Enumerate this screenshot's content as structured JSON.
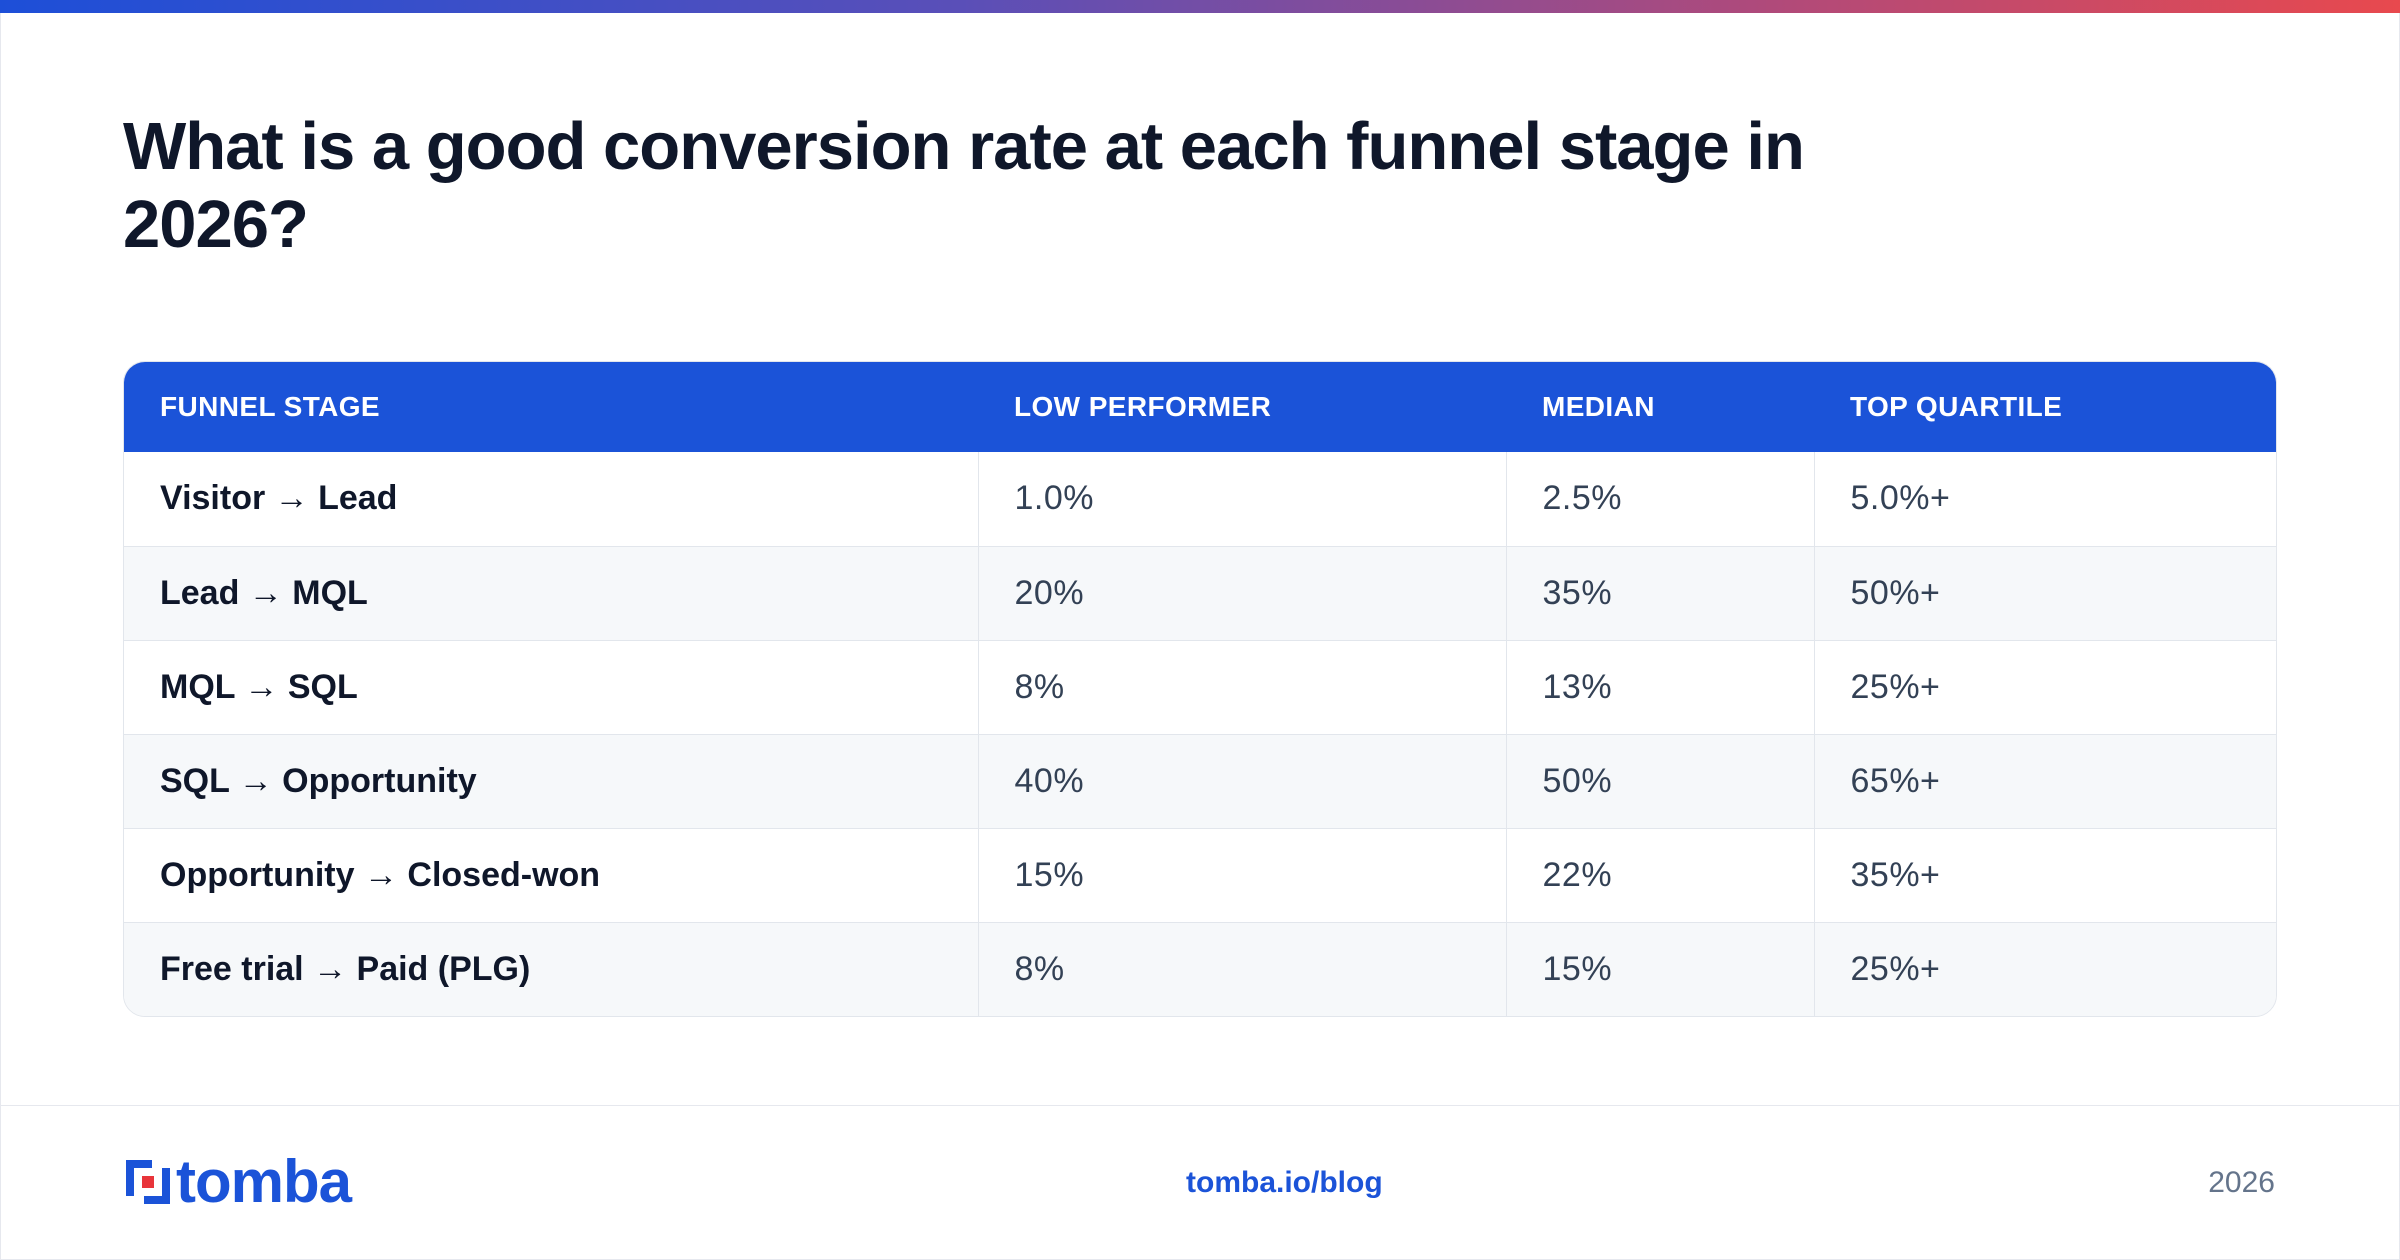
{
  "title": "What is a good conversion rate at each funnel stage in 2026?",
  "table": {
    "headers": [
      "FUNNEL STAGE",
      "LOW PERFORMER",
      "MEDIAN",
      "TOP QUARTILE"
    ],
    "rows": [
      {
        "stage": "Visitor → Lead",
        "low": "1.0%",
        "median": "2.5%",
        "top": "5.0%+"
      },
      {
        "stage": "Lead → MQL",
        "low": "20%",
        "median": "35%",
        "top": "50%+"
      },
      {
        "stage": "MQL → SQL",
        "low": "8%",
        "median": "13%",
        "top": "25%+"
      },
      {
        "stage": "SQL → Opportunity",
        "low": "40%",
        "median": "50%",
        "top": "65%+"
      },
      {
        "stage": "Opportunity → Closed-won",
        "low": "15%",
        "median": "22%",
        "top": "35%+"
      },
      {
        "stage": "Free trial → Paid (PLG)",
        "low": "8%",
        "median": "15%",
        "top": "25%+"
      }
    ]
  },
  "footer": {
    "logo_text": "tomba",
    "link": "tomba.io/blog",
    "year": "2026"
  },
  "colors": {
    "accent": "#1b53d8",
    "logo_red": "#e8343a",
    "gradient": [
      "#1d4fd8",
      "#e8494e"
    ]
  }
}
